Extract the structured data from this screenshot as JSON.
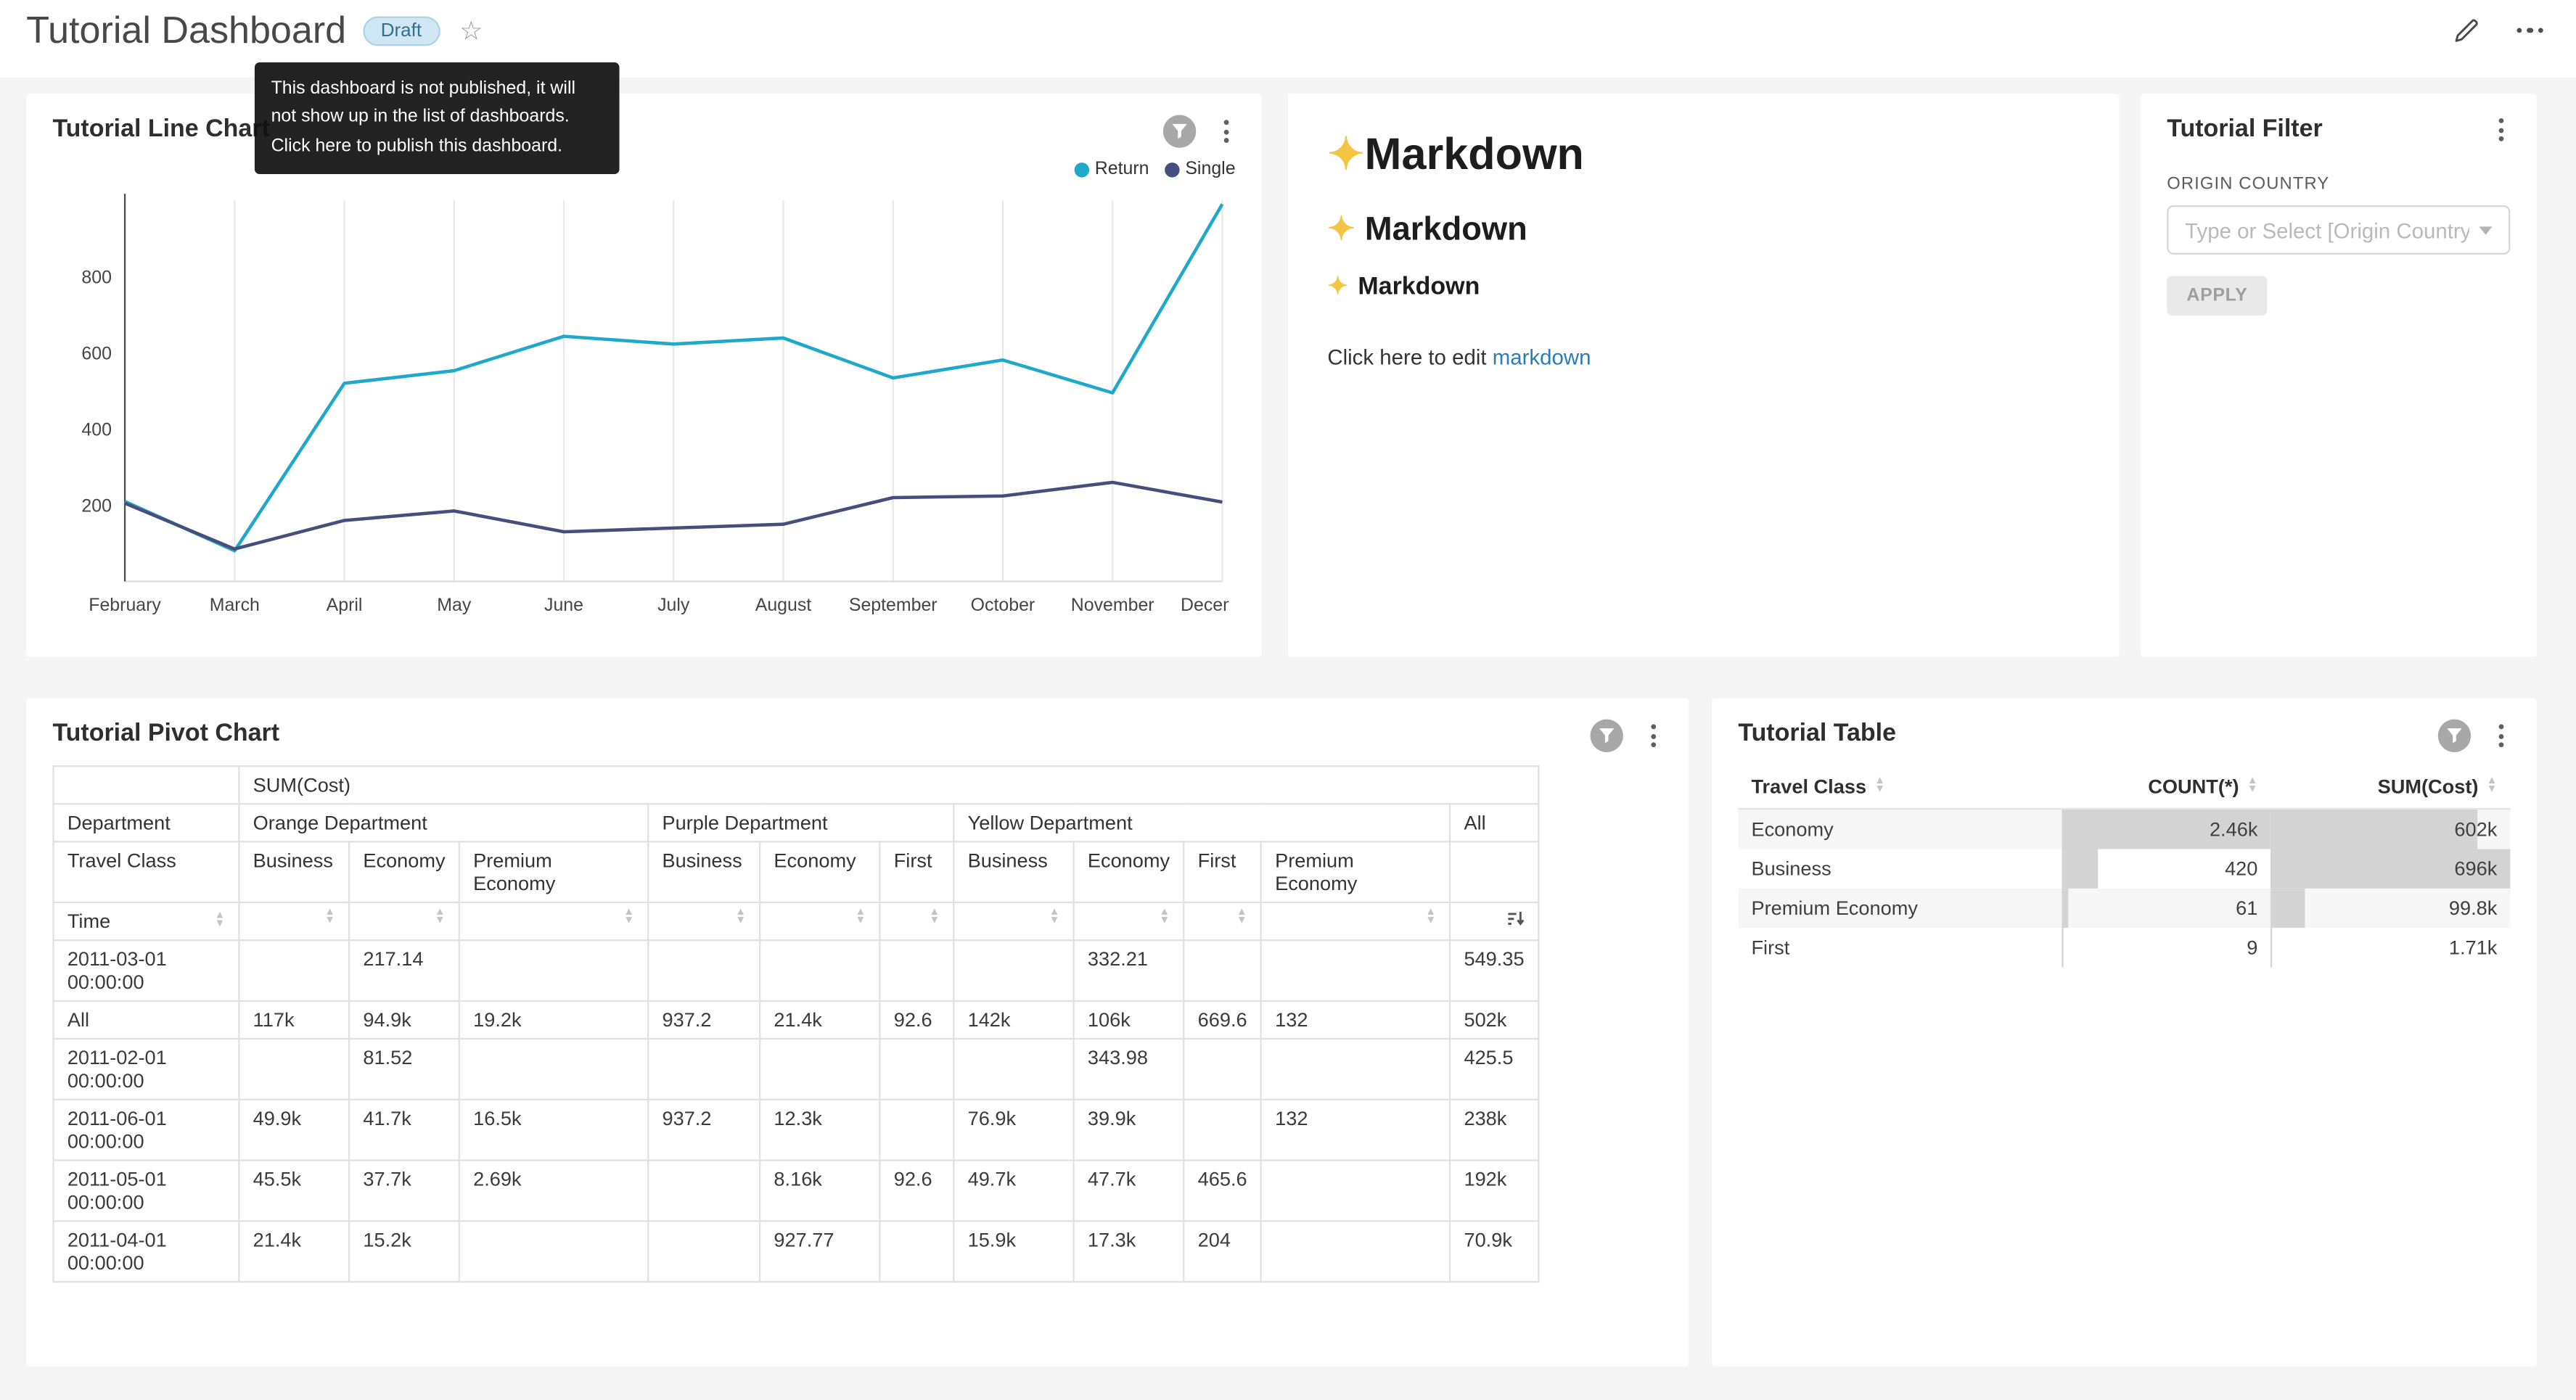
{
  "header": {
    "title": "Tutorial Dashboard",
    "badge": "Draft",
    "star_icon": "☆",
    "tooltip": "This dashboard is not published, it will not show up in the list of dashboards. Click here to publish this dashboard."
  },
  "chart_data": {
    "type": "line",
    "title": "Tutorial Line Chart",
    "categories": [
      "February",
      "March",
      "April",
      "May",
      "June",
      "July",
      "August",
      "September",
      "October",
      "November",
      "December"
    ],
    "series": [
      {
        "name": "Return",
        "color": "#1FA8C9",
        "values": [
          210,
          80,
          520,
          553,
          643,
          623,
          639,
          534,
          581,
          495,
          990
        ]
      },
      {
        "name": "Single",
        "color": "#454E7C",
        "values": [
          205,
          85,
          160,
          185,
          130,
          140,
          150,
          220,
          224,
          260,
          208
        ]
      }
    ],
    "xlabel": "",
    "ylabel": "",
    "ylim": [
      0,
      1000
    ],
    "yticks": [
      200,
      400,
      600,
      800
    ],
    "grid": "vertical",
    "legend_position": "top-right"
  },
  "cards": {
    "line": {
      "title": "Tutorial Line Chart"
    },
    "markdown": {
      "sparkle_icon": "✦",
      "h1": "Markdown",
      "h2": "Markdown",
      "h3": "Markdown",
      "paragraph_prefix": "Click here to edit ",
      "link_text": "markdown"
    },
    "filter": {
      "title": "Tutorial Filter",
      "field_label": "ORIGIN COUNTRY",
      "select_placeholder": "Type or Select [Origin Country]",
      "apply_label": "APPLY"
    },
    "pivot": {
      "title": "Tutorial Pivot Chart",
      "table": {
        "measure_label": "SUM(Cost)",
        "dept_label": "Department",
        "class_label": "Travel Class",
        "time_label": "Time",
        "groups": [
          {
            "name": "Orange Department",
            "classes": [
              "Business",
              "Economy",
              "Premium Economy"
            ]
          },
          {
            "name": "Purple Department",
            "classes": [
              "Business",
              "Economy",
              "First"
            ]
          },
          {
            "name": "Yellow Department",
            "classes": [
              "Business",
              "Economy",
              "First",
              "Premium Economy"
            ]
          },
          {
            "name": "All",
            "classes": [
              ""
            ]
          }
        ],
        "rows": [
          {
            "label": "2011-03-01 00:00:00",
            "values": [
              "",
              "217.14",
              "",
              "",
              "",
              "",
              "",
              "332.21",
              "",
              "",
              "549.35"
            ]
          },
          {
            "label": "All",
            "values": [
              "117k",
              "94.9k",
              "19.2k",
              "937.2",
              "21.4k",
              "92.6",
              "142k",
              "106k",
              "669.6",
              "132",
              "502k"
            ]
          },
          {
            "label": "2011-02-01 00:00:00",
            "values": [
              "",
              "81.52",
              "",
              "",
              "",
              "",
              "",
              "343.98",
              "",
              "",
              "425.5"
            ]
          },
          {
            "label": "2011-06-01 00:00:00",
            "values": [
              "49.9k",
              "41.7k",
              "16.5k",
              "937.2",
              "12.3k",
              "",
              "76.9k",
              "39.9k",
              "",
              "132",
              "238k"
            ]
          },
          {
            "label": "2011-05-01 00:00:00",
            "values": [
              "45.5k",
              "37.7k",
              "2.69k",
              "",
              "8.16k",
              "92.6",
              "49.7k",
              "47.7k",
              "465.6",
              "",
              "192k"
            ]
          },
          {
            "label": "2011-04-01 00:00:00",
            "values": [
              "21.4k",
              "15.2k",
              "",
              "",
              "927.77",
              "",
              "15.9k",
              "17.3k",
              "204",
              "",
              "70.9k"
            ]
          }
        ]
      }
    },
    "table": {
      "title": "Tutorial Table",
      "columns": [
        "Travel Class",
        "COUNT(*)",
        "SUM(Cost)"
      ],
      "rows": [
        {
          "travel_class": "Economy",
          "count": "2.46k",
          "count_value": 2460,
          "sum": "602k",
          "sum_value": 602000
        },
        {
          "travel_class": "Business",
          "count": "420",
          "count_value": 420,
          "sum": "696k",
          "sum_value": 696000
        },
        {
          "travel_class": "Premium Economy",
          "count": "61",
          "count_value": 61,
          "sum": "99.8k",
          "sum_value": 99800
        },
        {
          "travel_class": "First",
          "count": "9",
          "count_value": 9,
          "sum": "1.71k",
          "sum_value": 1710
        }
      ]
    }
  }
}
